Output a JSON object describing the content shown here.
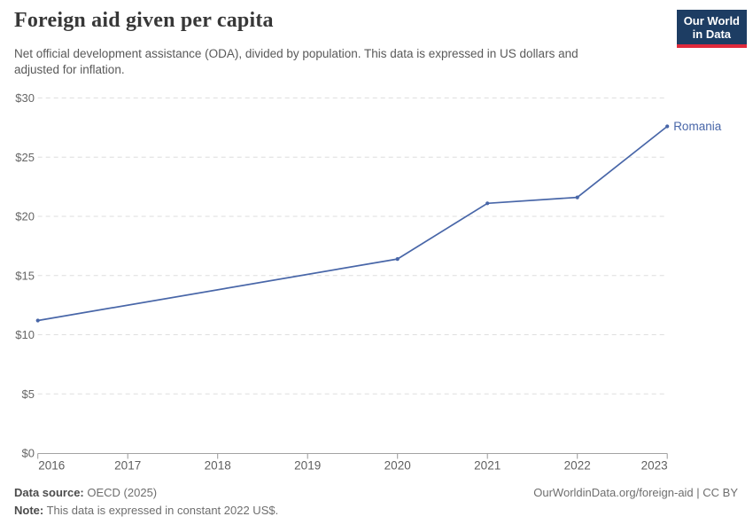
{
  "header": {
    "title": "Foreign aid given per capita",
    "subtitle_lines": [
      "Net official development assistance (ODA), divided by population. This data is expressed in US dollars and",
      "adjusted for inflation."
    ],
    "logo": {
      "line1": "Our World",
      "line2": "in Data",
      "bg_color": "#1d3d63",
      "stripe_color": "#e0293b",
      "text_color": "#ffffff"
    }
  },
  "chart_data": {
    "type": "line",
    "title": "Foreign aid given per capita",
    "x_axis": {
      "range": [
        2016,
        2023
      ],
      "ticks": [
        2016,
        2017,
        2018,
        2019,
        2020,
        2021,
        2022,
        2023
      ],
      "labels": [
        "2016",
        "2017",
        "2018",
        "2019",
        "2020",
        "2021",
        "2022",
        "2023"
      ]
    },
    "y_axis": {
      "range": [
        0,
        30
      ],
      "ticks": [
        0,
        5,
        10,
        15,
        20,
        25,
        30
      ],
      "labels": [
        "$0",
        "$5",
        "$10",
        "$15",
        "$20",
        "$25",
        "$30"
      ]
    },
    "grid": {
      "horizontal": true,
      "style": "dashed",
      "color": "#dedede"
    },
    "axis_color": "#a3a3a3",
    "tick_color": "#999999",
    "legend_position": "end-of-line",
    "series": [
      {
        "name": "Romania",
        "end_label": "Romania",
        "color": "#4866a8",
        "x": [
          2016,
          2020,
          2021,
          2022,
          2023
        ],
        "values": [
          11.2,
          16.4,
          21.1,
          21.6,
          27.6
        ]
      }
    ]
  },
  "footer": {
    "source_label": "Data source:",
    "source_value": "OECD (2025)",
    "note_label": "Note:",
    "note_value": "This data is expressed in constant 2022 US$.",
    "link": "OurWorldinData.org/foreign-aid | CC BY"
  }
}
